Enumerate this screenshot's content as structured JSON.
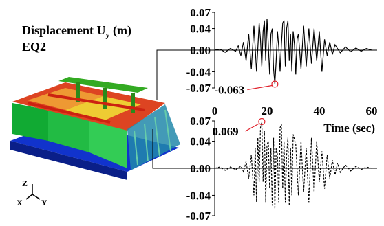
{
  "labels": {
    "title": "Displacement U",
    "title_sub": "y",
    "title_unit": " (m)",
    "subtitle": "EQ2"
  },
  "axis_glyphs": {
    "z": "Z",
    "x": "X",
    "y": "Y"
  },
  "colors": {
    "line": "#000000",
    "marker": "#e0202a"
  },
  "chart_data": [
    {
      "type": "line",
      "name": "top",
      "style": "solid",
      "xlim": [
        0,
        60
      ],
      "ylim": [
        -0.07,
        0.07
      ],
      "yticks": [
        "0.07",
        "0.04",
        "0.00",
        "-0.04",
        "-0.07"
      ],
      "xticks": [
        "0",
        "20",
        "40",
        "60"
      ],
      "xlabel": "Time (sec)",
      "peak": {
        "x": 23,
        "y": -0.063,
        "label": "-0.063"
      },
      "x": [
        0,
        2,
        4,
        6,
        8,
        9,
        10,
        11,
        12,
        13,
        14,
        15,
        16,
        17,
        17.5,
        18,
        18.5,
        19,
        19.5,
        20,
        20.5,
        21,
        21.5,
        22,
        22.5,
        23,
        23.5,
        24,
        24.5,
        25,
        25.5,
        26,
        26.5,
        27,
        27.5,
        28,
        28.5,
        29,
        29.5,
        30,
        30.5,
        31,
        31.5,
        32,
        33,
        34,
        35,
        36,
        37,
        38,
        39,
        40,
        41,
        42,
        43,
        44,
        45,
        46,
        48,
        50,
        52,
        54,
        56,
        58,
        60
      ],
      "y": [
        0,
        0.002,
        -0.004,
        0.003,
        -0.002,
        0.008,
        -0.01,
        0.015,
        -0.02,
        0.03,
        -0.035,
        0.045,
        -0.04,
        0.05,
        0.02,
        -0.03,
        0.035,
        0.055,
        -0.02,
        0.058,
        0.01,
        -0.045,
        0.03,
        0.04,
        -0.035,
        -0.063,
        -0.02,
        0.035,
        0.005,
        -0.04,
        0.01,
        0.05,
        0.055,
        -0.03,
        0.04,
        0.055,
        -0.02,
        0.03,
        -0.04,
        0.035,
        0.01,
        -0.045,
        0.02,
        0.03,
        -0.035,
        0.045,
        -0.03,
        0.04,
        -0.025,
        0.04,
        -0.02,
        0.035,
        -0.04,
        0.02,
        -0.01,
        0.015,
        -0.008,
        0.01,
        -0.005,
        0.006,
        -0.003,
        0.004,
        -0.002,
        0.003,
        0
      ]
    },
    {
      "type": "line",
      "name": "bottom",
      "style": "dashed",
      "xlim": [
        0,
        60
      ],
      "ylim": [
        -0.07,
        0.07
      ],
      "yticks": [
        "0.07",
        "0.04",
        "0.00",
        "-0.04",
        "-0.07"
      ],
      "xticks": [
        "0",
        "20",
        "40",
        "60"
      ],
      "xlabel": "Time (sec)",
      "peak": {
        "x": 18,
        "y": 0.069,
        "label": "0.069"
      },
      "x": [
        0,
        2,
        4,
        6,
        8,
        10,
        11,
        12,
        13,
        14,
        15,
        15.5,
        16,
        16.5,
        17,
        17.5,
        18,
        18.5,
        19,
        19.5,
        20,
        20.5,
        21,
        21.5,
        22,
        22.5,
        23,
        23.5,
        24,
        24.5,
        25,
        25.5,
        26,
        26.5,
        27,
        27.5,
        28,
        28.5,
        29,
        29.5,
        30,
        31,
        32,
        33,
        34,
        35,
        36,
        37,
        38,
        39,
        40,
        41,
        42,
        43,
        44,
        45,
        46,
        47,
        48,
        50,
        52,
        54,
        56,
        58,
        60
      ],
      "y": [
        0,
        0.002,
        -0.003,
        0.002,
        -0.002,
        0.003,
        -0.005,
        0.01,
        -0.015,
        0.02,
        -0.04,
        0.03,
        -0.05,
        0.045,
        -0.02,
        0.06,
        0.069,
        -0.02,
        0.055,
        -0.05,
        0.035,
        0.04,
        -0.03,
        0.03,
        -0.055,
        0.045,
        -0.06,
        0.03,
        0.02,
        -0.05,
        0.06,
        0.065,
        -0.03,
        0.04,
        -0.05,
        0.02,
        0.045,
        -0.055,
        0.03,
        -0.04,
        0.05,
        0.035,
        -0.04,
        0.04,
        -0.035,
        0.03,
        -0.05,
        0.045,
        -0.035,
        0.04,
        -0.02,
        0.025,
        -0.03,
        0.02,
        -0.015,
        0.012,
        -0.01,
        0.008,
        -0.006,
        0.005,
        -0.004,
        0.003,
        -0.002,
        0.002,
        0
      ]
    }
  ]
}
